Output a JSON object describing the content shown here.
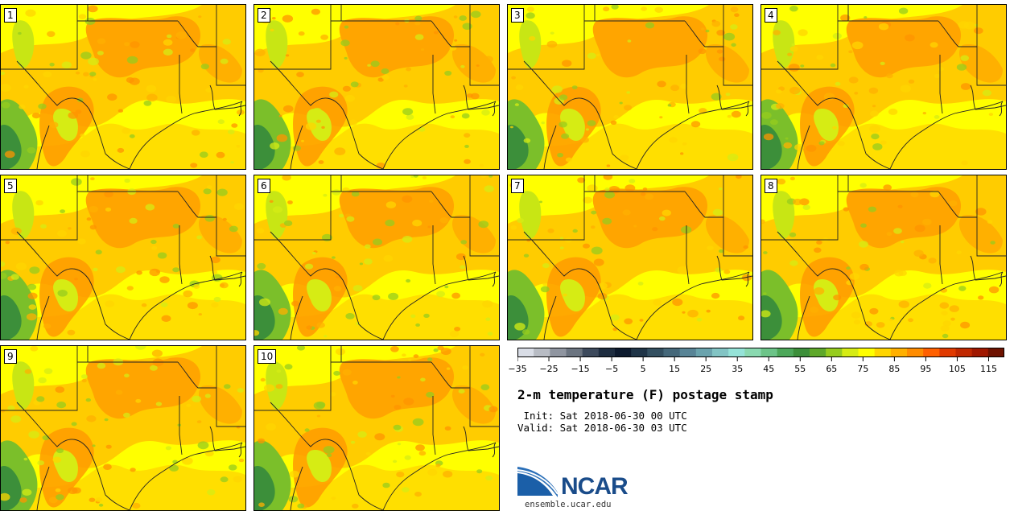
{
  "members": [
    "1",
    "2",
    "3",
    "4",
    "5",
    "6",
    "7",
    "8",
    "9",
    "10"
  ],
  "colorbar": {
    "tick_labels": [
      "−35",
      "−25",
      "−15",
      "−5",
      "5",
      "15",
      "25",
      "35",
      "45",
      "55",
      "65",
      "75",
      "85",
      "95",
      "105",
      "115"
    ],
    "colors": [
      "#d9dde6",
      "#b8bcc4",
      "#8f95a0",
      "#6b7480",
      "#3d4a5c",
      "#1e2d40",
      "#0d1a2e",
      "#1f3447",
      "#334f60",
      "#45687a",
      "#588496",
      "#6aa3ad",
      "#82c4c4",
      "#95e3d8",
      "#8ad9b0",
      "#6cc488",
      "#4da85a",
      "#3c8f3a",
      "#5ea82a",
      "#96cc1e",
      "#d6ec14",
      "#ffff00",
      "#ffd500",
      "#ffb000",
      "#ff8c00",
      "#ff6000",
      "#e03a00",
      "#c02800",
      "#a01800",
      "#6e1200"
    ],
    "min": -35,
    "max": 120
  },
  "title": "2-m temperature (F) postage stamp",
  "init": " Init: Sat 2018-06-30 00 UTC",
  "valid": "Valid: Sat 2018-06-30 03 UTC",
  "logo": {
    "text": "NCAR",
    "url": "ensemble.ucar.edu"
  }
}
